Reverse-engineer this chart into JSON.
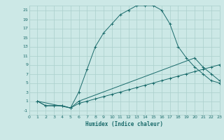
{
  "xlabel": "Humidex (Indice chaleur)",
  "bg_color": "#cce8e6",
  "grid_color": "#aacfcc",
  "line_color": "#1a6b6b",
  "xlim": [
    0,
    23
  ],
  "ylim": [
    -2,
    22
  ],
  "xticks": [
    0,
    1,
    2,
    3,
    4,
    5,
    6,
    7,
    8,
    9,
    10,
    11,
    12,
    13,
    14,
    15,
    16,
    17,
    18,
    19,
    20,
    21,
    22,
    23
  ],
  "yticks": [
    -1,
    1,
    3,
    5,
    7,
    9,
    11,
    13,
    15,
    17,
    19,
    21
  ],
  "line1_x": [
    1,
    2,
    3,
    4,
    5,
    6,
    7,
    8,
    9,
    10,
    11,
    12,
    13,
    14,
    15,
    16,
    17,
    18,
    19,
    20,
    21,
    22,
    23
  ],
  "line1_y": [
    1,
    0,
    0,
    0,
    -0.5,
    3,
    8,
    13,
    16,
    18,
    20,
    21,
    22,
    22,
    22,
    21,
    18,
    13,
    10.5,
    8.5,
    7,
    5.5,
    5
  ],
  "line2_x": [
    1,
    2,
    3,
    4,
    5,
    6,
    7,
    8,
    9,
    10,
    11,
    12,
    13,
    14,
    15,
    16,
    17,
    18,
    19,
    20,
    21,
    22,
    23
  ],
  "line2_y": [
    1,
    0,
    0,
    0,
    -0.5,
    0.5,
    1,
    1.5,
    2,
    2.5,
    3,
    3.5,
    4,
    4.5,
    5,
    5.5,
    6,
    6.5,
    7,
    7.5,
    8,
    8.5,
    9
  ],
  "line3_x": [
    1,
    5,
    6,
    20,
    21,
    22,
    23
  ],
  "line3_y": [
    1,
    -0.5,
    1,
    10.5,
    8.5,
    7,
    5.5
  ]
}
